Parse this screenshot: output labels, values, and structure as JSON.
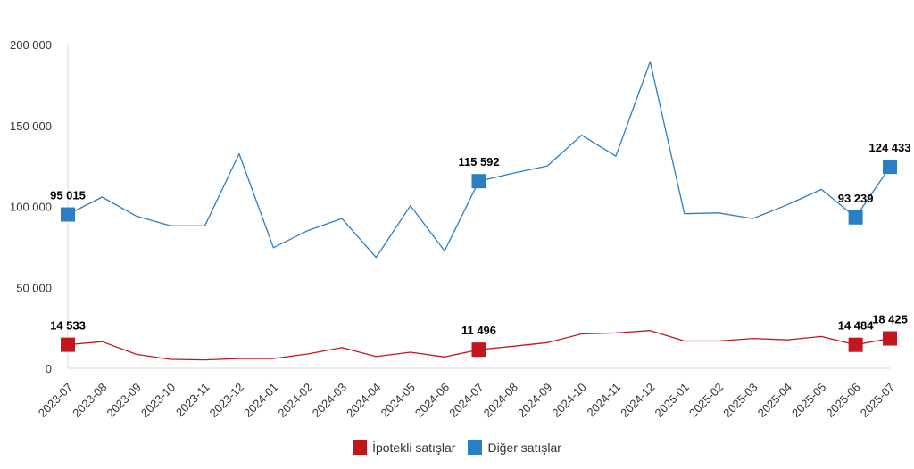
{
  "chart_data": {
    "type": "line",
    "categories": [
      "2023-07",
      "2023-08",
      "2023-09",
      "2023-10",
      "2023-11",
      "2023-12",
      "2024-01",
      "2024-02",
      "2024-03",
      "2024-04",
      "2024-05",
      "2024-06",
      "2024-07",
      "2024-08",
      "2024-09",
      "2024-10",
      "2024-11",
      "2024-12",
      "2025-01",
      "2025-02",
      "2025-03",
      "2025-04",
      "2025-05",
      "2025-06",
      "2025-07"
    ],
    "ylim": [
      0,
      200000
    ],
    "yticks": [
      "0",
      "50 000",
      "100 000",
      "150 000",
      "200 000"
    ],
    "ytick_values": [
      0,
      50000,
      100000,
      150000,
      200000
    ],
    "grid": false,
    "legend_position": "bottom-center",
    "series": [
      {
        "name": "İpotekli satışlar",
        "color": "#c0181e",
        "values": [
          14533,
          16400,
          8600,
          5500,
          5200,
          6000,
          6000,
          8800,
          12800,
          7200,
          9900,
          7000,
          11496,
          13600,
          15800,
          21200,
          21800,
          23300,
          16800,
          16800,
          18400,
          17500,
          19600,
          14484,
          18425
        ],
        "labels": [
          {
            "index": 0,
            "text": "14 533"
          },
          {
            "index": 12,
            "text": "11 496"
          },
          {
            "index": 23,
            "text": "14 484"
          },
          {
            "index": 24,
            "text": "18 425"
          }
        ]
      },
      {
        "name": "Diğer satışlar",
        "color": "#2a7fc4",
        "values": [
          95015,
          105800,
          94000,
          88000,
          88000,
          132500,
          74500,
          85000,
          92500,
          68500,
          100500,
          72500,
          115592,
          120500,
          125000,
          144000,
          131000,
          189500,
          95500,
          96000,
          92500,
          101000,
          110500,
          93239,
          124433
        ],
        "labels": [
          {
            "index": 0,
            "text": "95 015"
          },
          {
            "index": 12,
            "text": "115 592"
          },
          {
            "index": 23,
            "text": "93 239"
          },
          {
            "index": 24,
            "text": "124 433"
          }
        ]
      }
    ]
  }
}
